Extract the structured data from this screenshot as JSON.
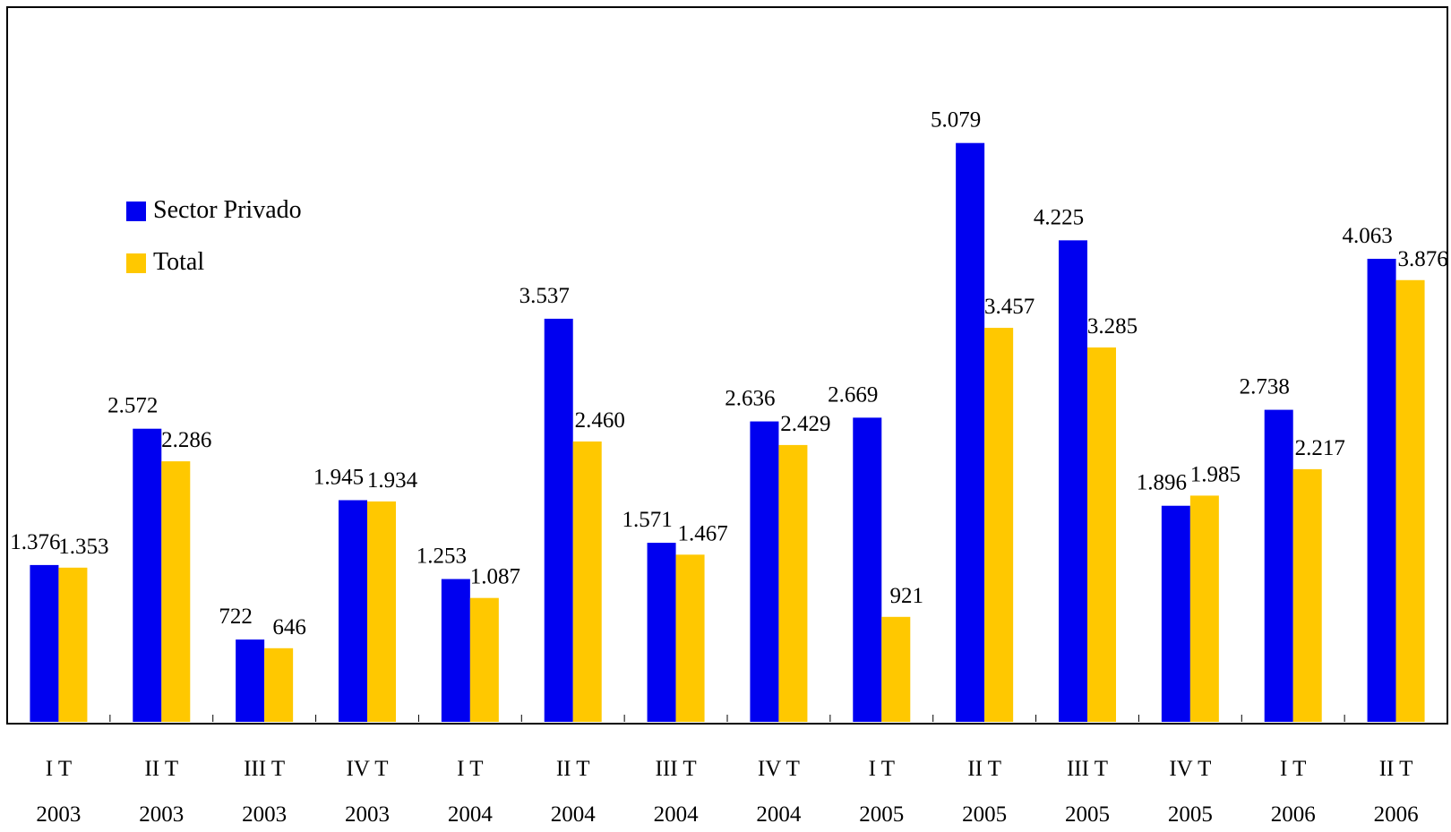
{
  "chart_data": {
    "type": "bar",
    "categories": [
      [
        "I T",
        "2003"
      ],
      [
        "II T",
        "2003"
      ],
      [
        "III T",
        "2003"
      ],
      [
        "IV T",
        "2003"
      ],
      [
        "I T",
        "2004"
      ],
      [
        "II T",
        "2004"
      ],
      [
        "III T",
        "2004"
      ],
      [
        "IV T",
        "2004"
      ],
      [
        "I T",
        "2005"
      ],
      [
        "II T",
        "2005"
      ],
      [
        "III T",
        "2005"
      ],
      [
        "IV T",
        "2005"
      ],
      [
        "I T",
        "2006"
      ],
      [
        "II T",
        "2006"
      ]
    ],
    "series": [
      {
        "name": "Sector Privado",
        "color": "#0000F0",
        "values": [
          1376,
          2572,
          722,
          1945,
          1253,
          3537,
          1571,
          2636,
          2669,
          5079,
          4225,
          1896,
          2738,
          4063
        ],
        "labels": [
          "1.376",
          "2.572",
          "722",
          "1.945",
          "1.253",
          "3.537",
          "1.571",
          "2.636",
          "2.669",
          "5.079",
          "4.225",
          "1.896",
          "2.738",
          "4.063"
        ]
      },
      {
        "name": "Total",
        "color": "#FFC800",
        "values": [
          1353,
          2286,
          646,
          1934,
          1087,
          2460,
          1467,
          2429,
          921,
          3457,
          3285,
          1985,
          2217,
          3876
        ],
        "labels": [
          "1.353",
          "2.286",
          "646",
          "1.934",
          "1.087",
          "2.460",
          "1.467",
          "2.429",
          "921",
          "3.457",
          "3.285",
          "1.985",
          "2.217",
          "3.876"
        ]
      }
    ],
    "ylim": [
      0,
      5600
    ],
    "grid": false,
    "legend": "upper-left"
  }
}
